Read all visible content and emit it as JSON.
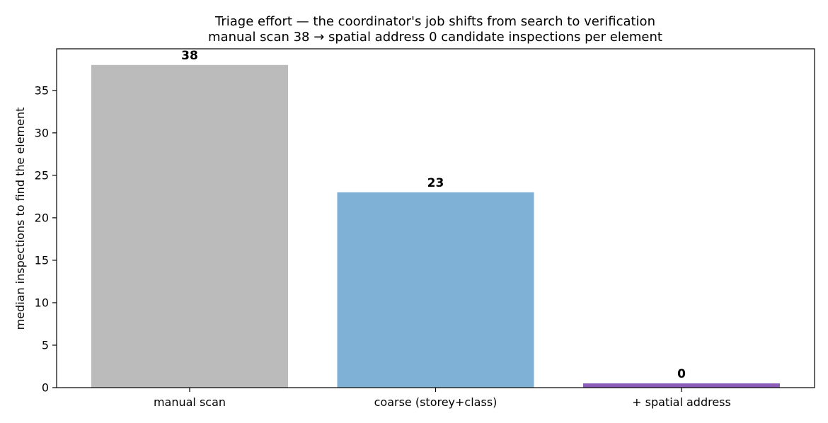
{
  "chart_data": {
    "type": "bar",
    "title": "Triage effort — the coordinator's job shifts from search to verification",
    "subtitle": "manual scan 38 → spatial address 0 candidate inspections per element",
    "xlabel": "",
    "ylabel": "median inspections to find the element",
    "categories": [
      "manual scan",
      "coarse (storey+class)",
      "+ spatial address"
    ],
    "values": [
      38,
      23,
      0
    ],
    "value_labels": [
      "38",
      "23",
      "0"
    ],
    "bar_colors": [
      "#bbbbbb",
      "#7eb1d5",
      "#8b5cb8"
    ],
    "ylim": [
      0,
      39.9
    ],
    "yticks": [
      0,
      5,
      10,
      15,
      20,
      25,
      30,
      35
    ],
    "ytick_labels": [
      "0",
      "5",
      "10",
      "15",
      "20",
      "25",
      "30",
      "35"
    ],
    "grid": false,
    "legend": "none"
  }
}
